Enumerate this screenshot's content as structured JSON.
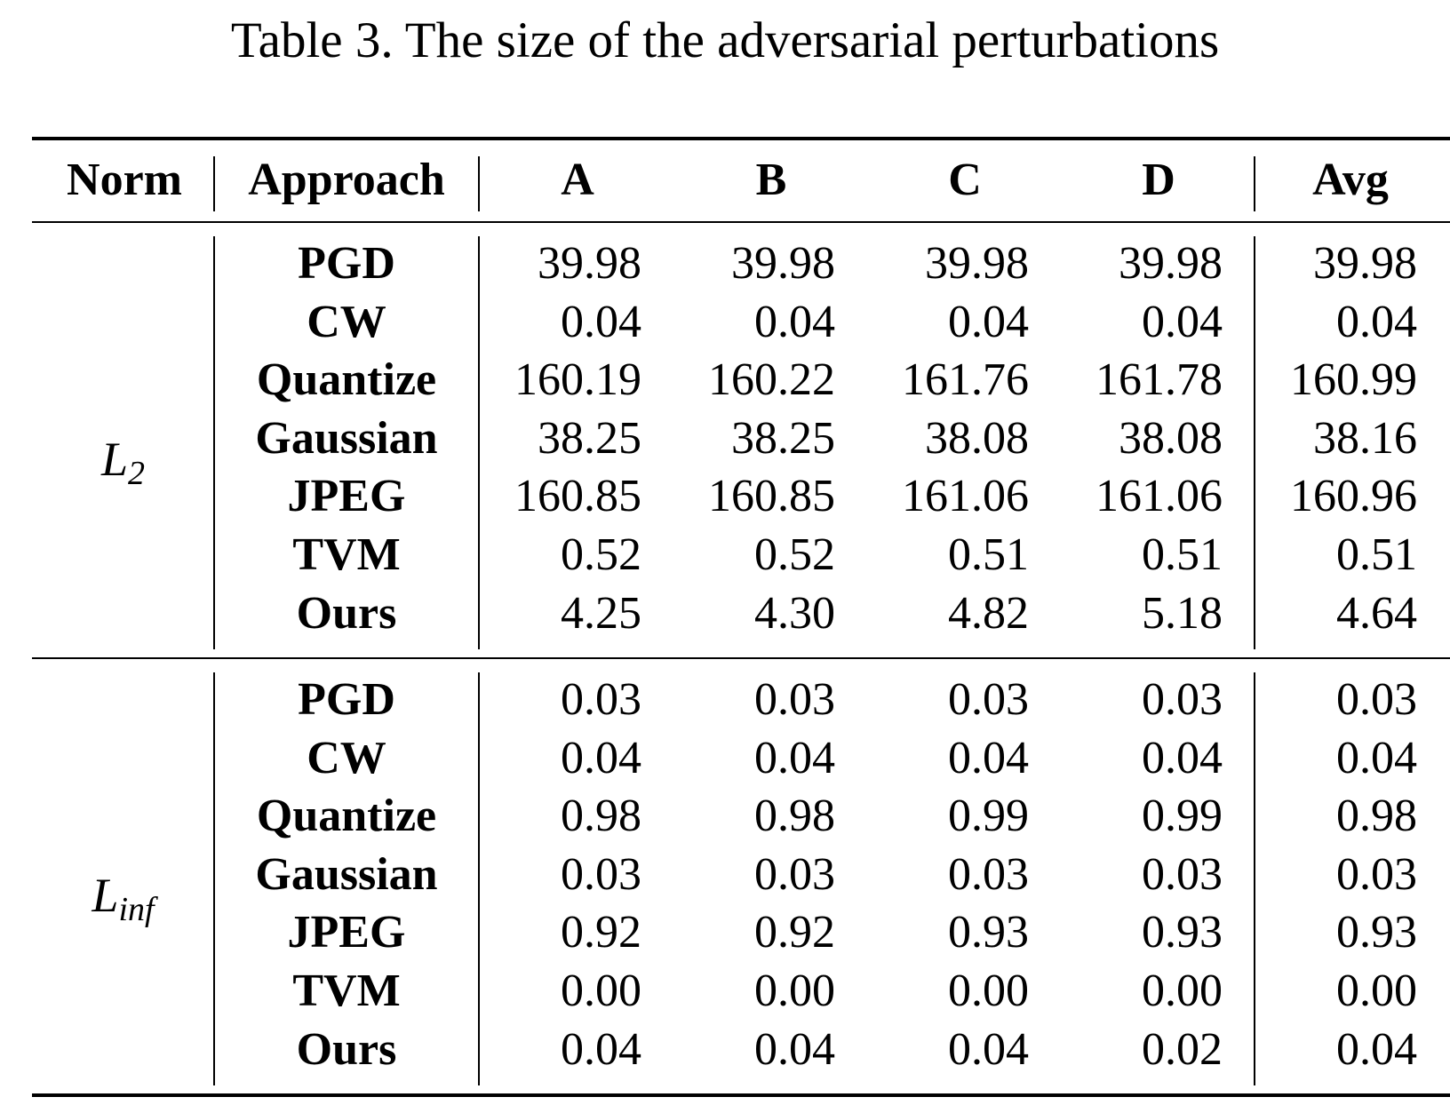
{
  "caption": "Table 3. The size of the adversarial perturbations",
  "headers": {
    "norm": "Norm",
    "approach": "Approach",
    "a": "A",
    "b": "B",
    "c": "C",
    "d": "D",
    "avg": "Avg"
  },
  "groups": [
    {
      "norm_base": "L",
      "norm_sub": "2",
      "rows": [
        {
          "approach": "PGD",
          "a": "39.98",
          "b": "39.98",
          "c": "39.98",
          "d": "39.98",
          "avg": "39.98"
        },
        {
          "approach": "CW",
          "a": "0.04",
          "b": "0.04",
          "c": "0.04",
          "d": "0.04",
          "avg": "0.04"
        },
        {
          "approach": "Quantize",
          "a": "160.19",
          "b": "160.22",
          "c": "161.76",
          "d": "161.78",
          "avg": "160.99"
        },
        {
          "approach": "Gaussian",
          "a": "38.25",
          "b": "38.25",
          "c": "38.08",
          "d": "38.08",
          "avg": "38.16"
        },
        {
          "approach": "JPEG",
          "a": "160.85",
          "b": "160.85",
          "c": "161.06",
          "d": "161.06",
          "avg": "160.96"
        },
        {
          "approach": "TVM",
          "a": "0.52",
          "b": "0.52",
          "c": "0.51",
          "d": "0.51",
          "avg": "0.51"
        },
        {
          "approach": "Ours",
          "a": "4.25",
          "b": "4.30",
          "c": "4.82",
          "d": "5.18",
          "avg": "4.64"
        }
      ]
    },
    {
      "norm_base": "L",
      "norm_sub": "inf",
      "rows": [
        {
          "approach": "PGD",
          "a": "0.03",
          "b": "0.03",
          "c": "0.03",
          "d": "0.03",
          "avg": "0.03"
        },
        {
          "approach": "CW",
          "a": "0.04",
          "b": "0.04",
          "c": "0.04",
          "d": "0.04",
          "avg": "0.04"
        },
        {
          "approach": "Quantize",
          "a": "0.98",
          "b": "0.98",
          "c": "0.99",
          "d": "0.99",
          "avg": "0.98"
        },
        {
          "approach": "Gaussian",
          "a": "0.03",
          "b": "0.03",
          "c": "0.03",
          "d": "0.03",
          "avg": "0.03"
        },
        {
          "approach": "JPEG",
          "a": "0.92",
          "b": "0.92",
          "c": "0.93",
          "d": "0.93",
          "avg": "0.93"
        },
        {
          "approach": "TVM",
          "a": "0.00",
          "b": "0.00",
          "c": "0.00",
          "d": "0.00",
          "avg": "0.00"
        },
        {
          "approach": "Ours",
          "a": "0.04",
          "b": "0.04",
          "c": "0.04",
          "d": "0.02",
          "avg": "0.04"
        }
      ]
    }
  ]
}
